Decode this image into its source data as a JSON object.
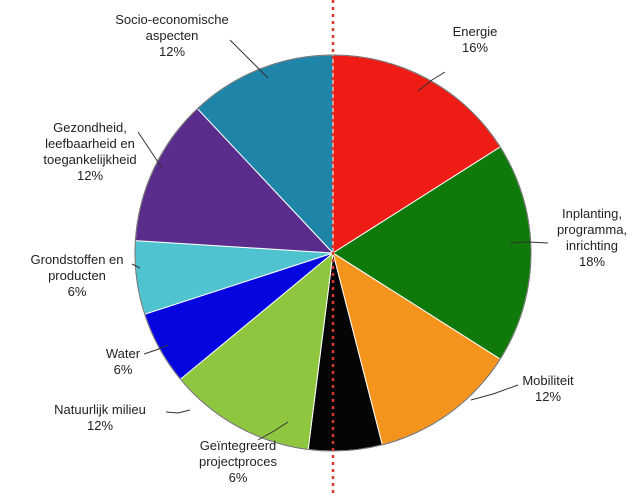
{
  "chart_data": {
    "type": "pie",
    "title": "",
    "start_angle_deg": 0,
    "direction": "clockwise",
    "slices": [
      {
        "label_lines": [
          "Energie",
          "16%"
        ],
        "value": 16,
        "color": "#ee1c14"
      },
      {
        "label_lines": [
          "Inplanting,",
          "programma,",
          "inrichting",
          "18%"
        ],
        "value": 18,
        "color": "#0f7a0a"
      },
      {
        "label_lines": [
          "Mobiliteit",
          "12%"
        ],
        "value": 12,
        "color": "#f5941d"
      },
      {
        "label_lines": [
          "Geïntegreerd",
          "projectproces",
          "6%"
        ],
        "value": 6,
        "color": "#050505"
      },
      {
        "label_lines": [
          "Natuurlijk milieu",
          "12%"
        ],
        "value": 12,
        "color": "#8ec63f"
      },
      {
        "label_lines": [
          "Water",
          "6%"
        ],
        "value": 6,
        "color": "#0505e0"
      },
      {
        "label_lines": [
          "Grondstoffen en",
          "producten",
          "6%"
        ],
        "value": 6,
        "color": "#4fc3d0"
      },
      {
        "label_lines": [
          "Gezondheid,",
          "leefbaarheid en",
          "toegankelijkheid",
          "12%"
        ],
        "value": 12,
        "color": "#5a2d8c"
      },
      {
        "label_lines": [
          "Socio-economische",
          "aspecten",
          "12%"
        ],
        "value": 12,
        "color": "#1e84a8"
      }
    ],
    "reference_line": {
      "style": "dotted",
      "color": "#d9382b"
    }
  }
}
